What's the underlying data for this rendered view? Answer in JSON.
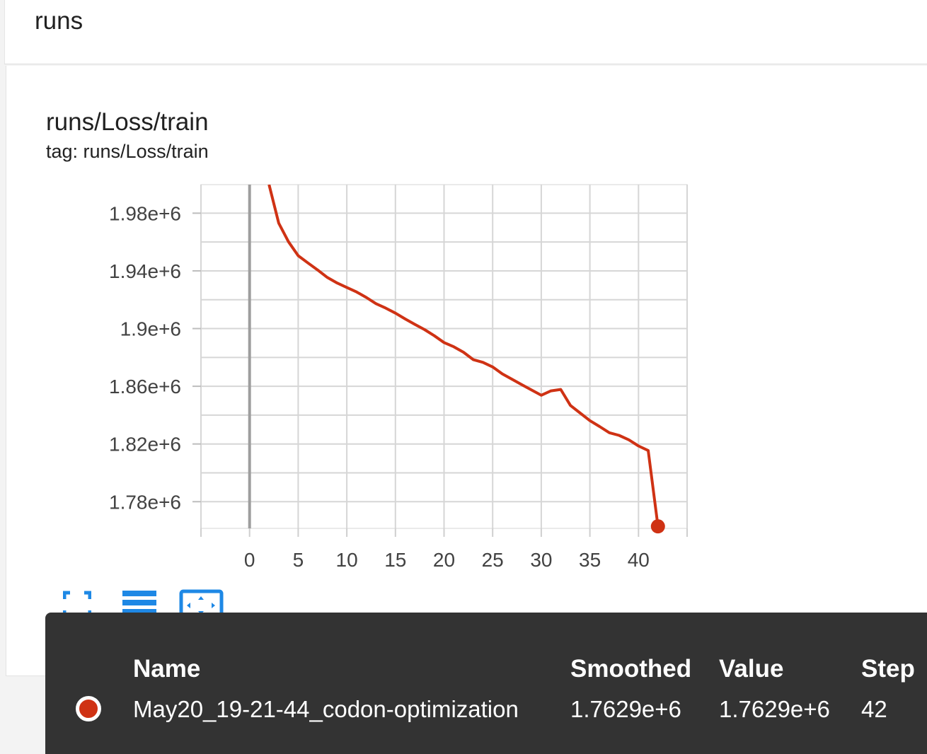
{
  "header": {
    "title": "runs"
  },
  "card": {
    "title": "runs/Loss/train",
    "subtitle": "tag: runs/Loss/train"
  },
  "colors": {
    "series": "#cf3214",
    "accent": "#1e88e5",
    "tooltip_bg": "#333333"
  },
  "toolbar": {
    "icons": [
      "fullscreen-icon",
      "data-table-icon",
      "fit-domain-icon"
    ]
  },
  "chart_data": {
    "type": "line",
    "title": "runs/Loss/train",
    "xlabel": "",
    "ylabel": "",
    "xlim": [
      -5,
      45
    ],
    "ylim": [
      1.7615,
      1.9998
    ],
    "y_multiplier": "e+6",
    "x_ticks": [
      0,
      5,
      10,
      15,
      20,
      25,
      30,
      35,
      40
    ],
    "x_tick_labels": [
      "0",
      "5",
      "10",
      "15",
      "20",
      "25",
      "30",
      "35",
      "40"
    ],
    "y_ticks": [
      1.78,
      1.82,
      1.86,
      1.9,
      1.94,
      1.98
    ],
    "y_tick_labels": [
      "1.78e+6",
      "1.82e+6",
      "1.86e+6",
      "1.9e+6",
      "1.94e+6",
      "1.98e+6"
    ],
    "grid": true,
    "series": [
      {
        "name": "May20_19-21-44_codon-optimization",
        "x": [
          2,
          3,
          4,
          5,
          6,
          7,
          8,
          9,
          10,
          11,
          12,
          13,
          14,
          15,
          16,
          17,
          18,
          19,
          20,
          21,
          22,
          23,
          24,
          25,
          26,
          27,
          28,
          29,
          30,
          31,
          32,
          33,
          34,
          35,
          36,
          37,
          38,
          39,
          40,
          41,
          42
        ],
        "values": [
          1.9998,
          1.9731,
          1.9602,
          1.9505,
          1.9455,
          1.9406,
          1.9354,
          1.9316,
          1.9285,
          1.9254,
          1.9216,
          1.9173,
          1.9142,
          1.9107,
          1.9067,
          1.9029,
          1.8993,
          1.895,
          1.8903,
          1.8874,
          1.8836,
          1.8785,
          1.8766,
          1.8734,
          1.8686,
          1.8648,
          1.8611,
          1.8574,
          1.8538,
          1.8568,
          1.8578,
          1.8467,
          1.8414,
          1.8362,
          1.8321,
          1.8278,
          1.826,
          1.8229,
          1.8186,
          1.8155,
          1.7629
        ]
      }
    ]
  },
  "tooltip": {
    "headers": {
      "name": "Name",
      "smoothed": "Smoothed",
      "value": "Value",
      "step": "Step"
    },
    "row": {
      "name": "May20_19-21-44_codon-optimization",
      "smoothed": "1.7629e+6",
      "value": "1.7629e+6",
      "step": "42"
    }
  }
}
